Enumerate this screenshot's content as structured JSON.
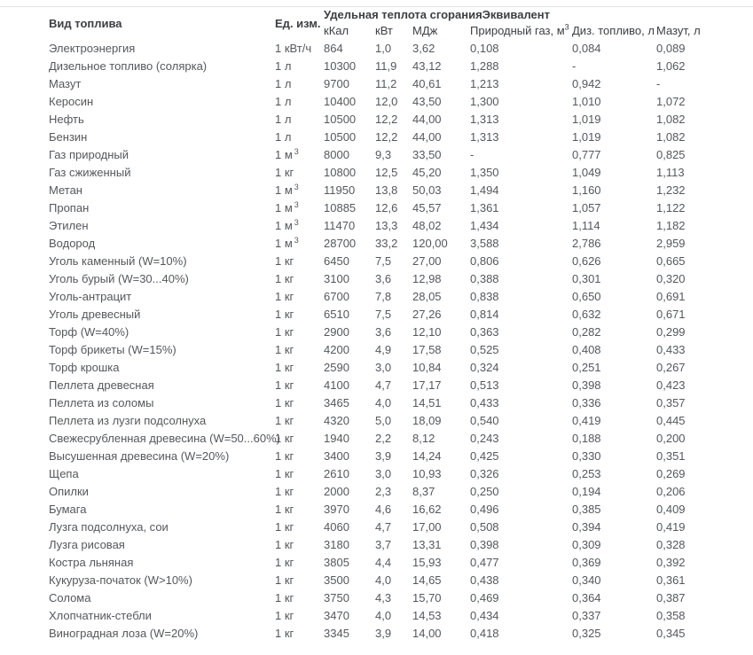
{
  "chart_data": {
    "type": "table",
    "column_groups": [
      {
        "label": "Удельная теплота сгорания",
        "spans": [
          "кКал",
          "кВт",
          "МДж"
        ]
      },
      {
        "label": "Эквивалент",
        "spans": [
          "Природный газ, м³",
          "Диз. топливо, л",
          "Мазут, л"
        ]
      }
    ],
    "columns": [
      "Вид топлива",
      "Ед. изм.",
      "кКал",
      "кВт",
      "МДж",
      "Природный газ, м³",
      "Диз. топливо, л",
      "Мазут, л"
    ],
    "rows": [
      [
        "Электроэнергия",
        "1 кВт/ч",
        "864",
        "1,0",
        "3,62",
        "0,108",
        "0,084",
        "0,089"
      ],
      [
        "Дизельное топливо (солярка)",
        "1 л",
        "10300",
        "11,9",
        "43,12",
        "1,288",
        "-",
        "1,062"
      ],
      [
        "Мазут",
        "1 л",
        "9700",
        "11,2",
        "40,61",
        "1,213",
        "0,942",
        "-"
      ],
      [
        "Керосин",
        "1 л",
        "10400",
        "12,0",
        "43,50",
        "1,300",
        "1,010",
        "1,072"
      ],
      [
        "Нефть",
        "1 л",
        "10500",
        "12,2",
        "44,00",
        "1,313",
        "1,019",
        "1,082"
      ],
      [
        "Бензин",
        "1 л",
        "10500",
        "12,2",
        "44,00",
        "1,313",
        "1,019",
        "1,082"
      ],
      [
        "Газ природный",
        "1 м³",
        "8000",
        "9,3",
        "33,50",
        "-",
        "0,777",
        "0,825"
      ],
      [
        "Газ сжиженный",
        "1 кг",
        "10800",
        "12,5",
        "45,20",
        "1,350",
        "1,049",
        "1,113"
      ],
      [
        "Метан",
        "1 м³",
        "11950",
        "13,8",
        "50,03",
        "1,494",
        "1,160",
        "1,232"
      ],
      [
        "Пропан",
        "1 м³",
        "10885",
        "12,6",
        "45,57",
        "1,361",
        "1,057",
        "1,122"
      ],
      [
        "Этилен",
        "1 м³",
        "11470",
        "13,3",
        "48,02",
        "1,434",
        "1,114",
        "1,182"
      ],
      [
        "Водород",
        "1 м³",
        "28700",
        "33,2",
        "120,00",
        "3,588",
        "2,786",
        "2,959"
      ],
      [
        "Уголь каменный (W=10%)",
        "1 кг",
        "6450",
        "7,5",
        "27,00",
        "0,806",
        "0,626",
        "0,665"
      ],
      [
        "Уголь бурый (W=30...40%)",
        "1 кг",
        "3100",
        "3,6",
        "12,98",
        "0,388",
        "0,301",
        "0,320"
      ],
      [
        "Уголь-антрацит",
        "1 кг",
        "6700",
        "7,8",
        "28,05",
        "0,838",
        "0,650",
        "0,691"
      ],
      [
        "Уголь древесный",
        "1 кг",
        "6510",
        "7,5",
        "27,26",
        "0,814",
        "0,632",
        "0,671"
      ],
      [
        "Торф (W=40%)",
        "1 кг",
        "2900",
        "3,6",
        "12,10",
        "0,363",
        "0,282",
        "0,299"
      ],
      [
        "Торф брикеты (W=15%)",
        "1 кг",
        "4200",
        "4,9",
        "17,58",
        "0,525",
        "0,408",
        "0,433"
      ],
      [
        "Торф крошка",
        "1 кг",
        "2590",
        "3,0",
        "10,84",
        "0,324",
        "0,251",
        "0,267"
      ],
      [
        "Пеллета древесная",
        "1 кг",
        "4100",
        "4,7",
        "17,17",
        "0,513",
        "0,398",
        "0,423"
      ],
      [
        "Пеллета из соломы",
        "1 кг",
        "3465",
        "4,0",
        "14,51",
        "0,433",
        "0,336",
        "0,357"
      ],
      [
        "Пеллета из лузги подсолнуха",
        "1 кг",
        "4320",
        "5,0",
        "18,09",
        "0,540",
        "0,419",
        "0,445"
      ],
      [
        "Свежесрубленная древесина (W=50...60%)",
        "1 кг",
        "1940",
        "2,2",
        "8,12",
        "0,243",
        "0,188",
        "0,200"
      ],
      [
        "Высушенная древесина (W=20%)",
        "1 кг",
        "3400",
        "3,9",
        "14,24",
        "0,425",
        "0,330",
        "0,351"
      ],
      [
        "Щепа",
        "1 кг",
        "2610",
        "3,0",
        "10,93",
        "0,326",
        "0,253",
        "0,269"
      ],
      [
        "Опилки",
        "1 кг",
        "2000",
        "2,3",
        "8,37",
        "0,250",
        "0,194",
        "0,206"
      ],
      [
        "Бумага",
        "1 кг",
        "3970",
        "4,6",
        "16,62",
        "0,496",
        "0,385",
        "0,409"
      ],
      [
        "Лузга подсолнуха, сои",
        "1 кг",
        "4060",
        "4,7",
        "17,00",
        "0,508",
        "0,394",
        "0,419"
      ],
      [
        "Лузга рисовая",
        "1 кг",
        "3180",
        "3,7",
        "13,31",
        "0,398",
        "0,309",
        "0,328"
      ],
      [
        "Костра льняная",
        "1 кг",
        "3805",
        "4,4",
        "15,93",
        "0,477",
        "0,369",
        "0,392"
      ],
      [
        "Кукуруза-початок (W>10%)",
        "1 кг",
        "3500",
        "4,0",
        "14,65",
        "0,438",
        "0,340",
        "0,361"
      ],
      [
        "Солома",
        "1 кг",
        "3750",
        "4,3",
        "15,70",
        "0,469",
        "0,364",
        "0,387"
      ],
      [
        "Хлопчатник-стебли",
        "1 кг",
        "3470",
        "4,0",
        "14,53",
        "0,434",
        "0,337",
        "0,358"
      ],
      [
        "Виноградная лоза (W=20%)",
        "1 кг",
        "3345",
        "3,9",
        "14,00",
        "0,418",
        "0,325",
        "0,345"
      ]
    ],
    "cell_names": [
      "fuel-name",
      "unit-value",
      "kcal-value",
      "kw-value",
      "mj-value",
      "gas-equivalent-value",
      "diesel-equivalent-value",
      "mazut-equivalent-value"
    ],
    "colors": {
      "header_text": "#3c4043",
      "body_text": "#54585c",
      "top_border": "#e2e2e2",
      "background": "#ffffff"
    }
  }
}
